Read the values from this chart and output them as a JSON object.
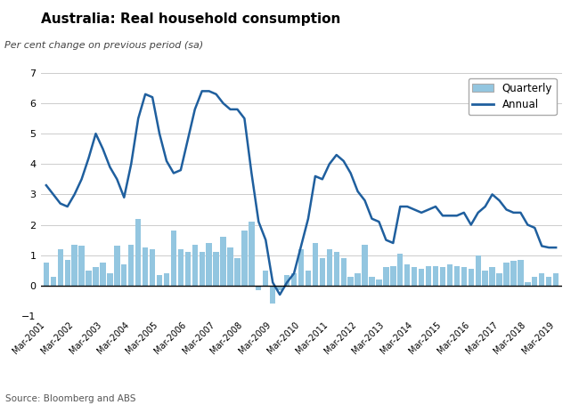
{
  "title": "Australia: Real household consumption",
  "subtitle": "Per cent change on previous period (sa)",
  "source": "Source: Bloomberg and ABS",
  "bar_color": "#93C6E0",
  "line_color": "#1F5F9E",
  "ylim": [
    -1,
    7
  ],
  "yticks": [
    -1,
    0,
    1,
    2,
    3,
    4,
    5,
    6,
    7
  ],
  "labels": [
    "Mar-2001",
    "Mar-2002",
    "Mar-2003",
    "Mar-2004",
    "Mar-2005",
    "Mar-2006",
    "Mar-2007",
    "Mar-2008",
    "Mar-2009",
    "Mar-2010",
    "Mar-2011",
    "Mar-2012",
    "Mar-2013",
    "Mar-2014",
    "Mar-2015",
    "Mar-2016",
    "Mar-2017",
    "Mar-2018",
    "Mar-2019"
  ],
  "quarterly": [
    0.75,
    0.3,
    1.2,
    0.85,
    1.35,
    1.3,
    0.5,
    0.6,
    0.75,
    0.4,
    1.3,
    0.7,
    1.35,
    2.2,
    1.25,
    1.2,
    0.35,
    0.4,
    1.8,
    1.2,
    1.1,
    1.35,
    1.1,
    1.4,
    1.1,
    1.6,
    1.25,
    0.9,
    1.8,
    2.1,
    -0.15,
    0.5,
    -0.6,
    -0.15,
    0.35,
    0.4,
    1.2,
    0.5,
    1.4,
    0.9,
    1.2,
    1.1,
    0.9,
    0.3,
    0.4,
    1.35,
    0.3,
    0.2,
    0.6,
    0.65,
    1.05,
    0.7,
    0.6,
    0.55,
    0.65,
    0.65,
    0.6,
    0.7,
    0.65,
    0.6,
    0.55,
    1.0,
    0.5,
    0.6,
    0.4,
    0.75,
    0.8,
    0.85,
    0.1,
    0.3,
    0.4,
    0.3,
    0.4
  ],
  "annual": [
    3.3,
    3.0,
    2.7,
    2.6,
    3.0,
    3.5,
    4.2,
    5.0,
    4.5,
    3.9,
    3.5,
    2.9,
    4.0,
    5.5,
    6.3,
    6.2,
    5.0,
    4.1,
    3.7,
    3.8,
    4.8,
    5.8,
    6.4,
    6.4,
    6.3,
    6.0,
    5.8,
    5.8,
    5.5,
    3.7,
    2.1,
    1.5,
    0.1,
    -0.3,
    0.1,
    0.4,
    1.3,
    2.2,
    3.6,
    3.5,
    4.0,
    4.3,
    4.1,
    3.7,
    3.1,
    2.8,
    2.2,
    2.1,
    1.5,
    1.4,
    2.6,
    2.6,
    2.5,
    2.4,
    2.5,
    2.6,
    2.3,
    2.3,
    2.3,
    2.4,
    2.0,
    2.4,
    2.6,
    3.0,
    2.8,
    2.5,
    2.4,
    2.4,
    2.0,
    1.9,
    1.3,
    1.25,
    1.25
  ],
  "xtick_positions": [
    0,
    4,
    8,
    12,
    16,
    20,
    24,
    28,
    32,
    36,
    40,
    44,
    48,
    52,
    56,
    60,
    64,
    68,
    72
  ]
}
